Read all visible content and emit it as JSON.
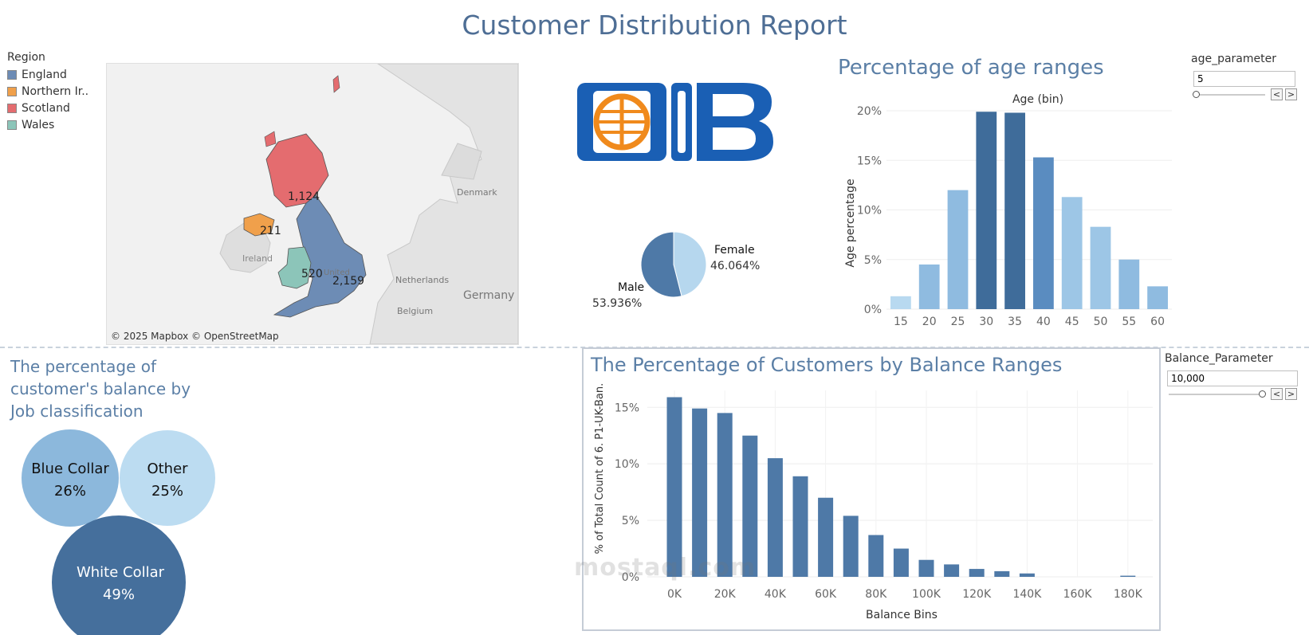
{
  "report": {
    "title": "Customer Distribution Report"
  },
  "map": {
    "legend_title": "Region",
    "regions": [
      {
        "name": "England",
        "color": "#6d8cb5",
        "value": "2,159"
      },
      {
        "name": "Northern Ir..",
        "color": "#f0a04b",
        "value": "211"
      },
      {
        "name": "Scotland",
        "color": "#e46c6f",
        "value": "1,124"
      },
      {
        "name": "Wales",
        "color": "#8cc5b9",
        "value": "520"
      }
    ],
    "place_labels": {
      "ireland": "Ireland",
      "united": "United",
      "denmark": "Denmark",
      "netherlands": "Netherlands",
      "belgium": "Belgium",
      "germany": "Germany"
    },
    "attribution": "© 2025 Mapbox © OpenStreetMap"
  },
  "gender": {
    "slices": [
      {
        "name": "Male",
        "label": "53.936%",
        "value": 53.936,
        "color": "#4e79a7"
      },
      {
        "name": "Female",
        "label": "46.064%",
        "value": 46.064,
        "color": "#b6d7ee"
      }
    ]
  },
  "age_chart": {
    "title": "Percentage of age ranges",
    "header": "Age (bin)",
    "ylabel": "Age percentage",
    "yticks": [
      "0%",
      "5%",
      "10%",
      "15%",
      "20%"
    ],
    "ylim": [
      0,
      20
    ],
    "categories": [
      "15",
      "20",
      "25",
      "30",
      "35",
      "40",
      "45",
      "50",
      "55",
      "60"
    ],
    "values": [
      1.3,
      4.5,
      12.0,
      19.9,
      19.8,
      15.3,
      11.3,
      8.3,
      5.0,
      2.3
    ],
    "colors": [
      "#b8d9f0",
      "#8fbbe0",
      "#8fbbe0",
      "#3f6c9a",
      "#3f6c9a",
      "#5a8cc0",
      "#9dc6e6",
      "#9dc6e6",
      "#8fbbe0",
      "#8fbbe0"
    ]
  },
  "age_parameter": {
    "label": "age_parameter",
    "value": "5",
    "prev": "<",
    "next": ">"
  },
  "job_chart": {
    "title": "The percentage of customer's balance by Job classification",
    "bubbles": [
      {
        "name": "Blue Collar",
        "pct": "26%",
        "value": 26,
        "color": "#8cb8dc",
        "text_color": "#111111"
      },
      {
        "name": "Other",
        "pct": "25%",
        "value": 25,
        "color": "#bcdcf1",
        "text_color": "#111111"
      },
      {
        "name": "White Collar",
        "pct": "49%",
        "value": 49,
        "color": "#456f9c",
        "text_color": "#ffffff"
      }
    ]
  },
  "balance_chart": {
    "title": "The Percentage of Customers by Balance Ranges",
    "xlabel": "Balance Bins",
    "ylabel": "% of Total Count of 6. P1-UK-Ban..",
    "yticks": [
      "0%",
      "5%",
      "10%",
      "15%"
    ],
    "ylim": [
      0,
      16.5
    ],
    "xticks": [
      "0K",
      "20K",
      "40K",
      "60K",
      "80K",
      "100K",
      "120K",
      "140K",
      "160K",
      "180K"
    ],
    "x": [
      0,
      10,
      20,
      30,
      40,
      50,
      60,
      70,
      80,
      90,
      100,
      110,
      120,
      130,
      140,
      180
    ],
    "values": [
      15.9,
      14.9,
      14.5,
      12.5,
      10.5,
      8.9,
      7.0,
      5.4,
      3.7,
      2.5,
      1.5,
      1.1,
      0.7,
      0.5,
      0.3,
      0.1
    ],
    "color": "#4e79a7"
  },
  "balance_parameter": {
    "label": "Balance_Parameter",
    "value": "10,000",
    "prev": "<",
    "next": ">"
  },
  "watermark": "mostaql.com"
}
